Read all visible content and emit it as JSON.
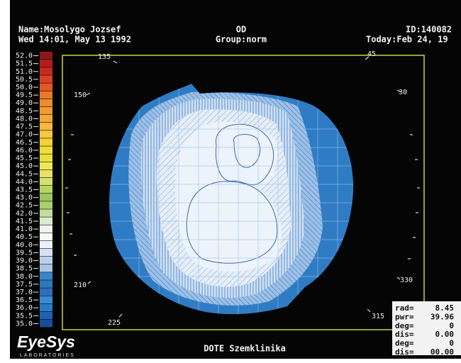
{
  "header": {
    "name": "Name:Mosolygo Jozsef",
    "datetime": "Wed 14:01, May 13 1992",
    "eye": "OD",
    "group": "Group:norm",
    "id": "ID:140082",
    "today": "Today:Feb 24, 19"
  },
  "scale": {
    "labels": [
      "52.0",
      "51.5",
      "51.0",
      "50.5",
      "50.0",
      "49.5",
      "49.0",
      "48.5",
      "48.0",
      "47.5",
      "47.0",
      "46.5",
      "46.0",
      "45.5",
      "45.0",
      "44.5",
      "44.0",
      "43.5",
      "43.0",
      "42.5",
      "42.0",
      "41.5",
      "41.0",
      "40.5",
      "40.0",
      "39.5",
      "39.0",
      "38.5",
      "38.0",
      "37.5",
      "37.0",
      "36.5",
      "36.0",
      "35.5",
      "35.0"
    ],
    "colors": [
      "#8a1a1a",
      "#b01e1e",
      "#c82a22",
      "#d8402a",
      "#e05a28",
      "#e87a2a",
      "#ec8c30",
      "#f09a30",
      "#f2a838",
      "#f4b840",
      "#f6c840",
      "#f2d23a",
      "#f0dc3a",
      "#e8e040",
      "#f0e850",
      "#e6e26a",
      "#d6e070",
      "#b8d468",
      "#9cc85e",
      "#a6cf70",
      "#c4dd9c",
      "#dcead0",
      "#f0f4ee",
      "#f6f8f6",
      "#eef2f8",
      "#d4e2f2",
      "#bcd2ec",
      "#a8c6e8",
      "#3c84c8",
      "#2e78c0",
      "#2a70bc",
      "#3a8cd0",
      "#2a7cc4",
      "#1e64b0",
      "#174e98"
    ]
  },
  "angles": [
    "135",
    "45",
    "150",
    "30",
    "210",
    "330",
    "225",
    "315"
  ],
  "readout": [
    {
      "label": "rad=",
      "value": "8.45"
    },
    {
      "label": "pwr=",
      "value": "39.96"
    },
    {
      "label": "deg=",
      "value": "0"
    },
    {
      "label": "dis=",
      "value": "0.00"
    },
    {
      "label": "deg=",
      "value": "0"
    },
    {
      "label": "dis=",
      "value": "00.00"
    }
  ],
  "footer": {
    "logo": "EyeSys",
    "logo_sub": "LABORATORIES",
    "clinic": "DOTE Szemklinika"
  }
}
